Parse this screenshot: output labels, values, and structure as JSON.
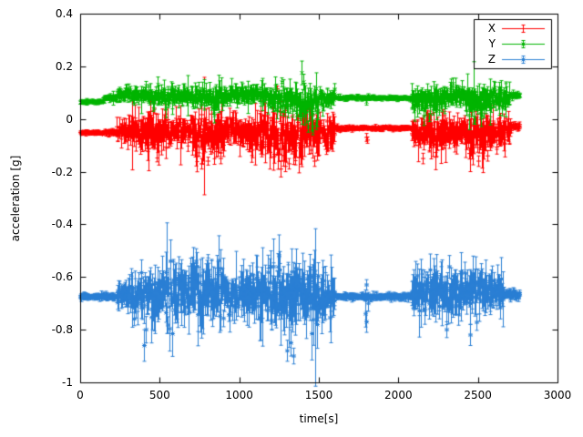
{
  "figure": {
    "background": "#ffffff",
    "border_color": "#000000",
    "text_color": "#000000"
  },
  "chart_data": {
    "type": "scatter",
    "style": "points-with-errorbars",
    "title": "",
    "xlabel": "time[s]",
    "ylabel": "acceleration [g]",
    "xlim": [
      0,
      3000
    ],
    "ylim": [
      -1,
      0.4
    ],
    "xticks": [
      0,
      500,
      1000,
      1500,
      2000,
      2500,
      3000
    ],
    "xtick_labels": [
      "0",
      "500",
      "1000",
      "1500",
      "2000",
      "2500",
      "3000"
    ],
    "yticks": [
      -1,
      -0.8,
      -0.6,
      -0.4,
      -0.2,
      0,
      0.2,
      0.4
    ],
    "ytick_labels": [
      "-1",
      "-0.8",
      "-0.6",
      "-0.4",
      "-0.2",
      "0",
      "0.2",
      "0.4"
    ],
    "grid": false,
    "legend_position": "top-right",
    "sample_step_s": 3,
    "t_end": 2762,
    "series": [
      {
        "name": "X",
        "color": "#ff0000",
        "marker": "plus",
        "seed": 11,
        "baseline_mean": -0.05,
        "segments": [
          [
            0,
            150,
            -0.052,
            0.004
          ],
          [
            150,
            230,
            -0.05,
            0.006
          ],
          [
            230,
            300,
            -0.05,
            0.025
          ],
          [
            300,
            420,
            -0.048,
            0.035
          ],
          [
            420,
            560,
            -0.05,
            0.045
          ],
          [
            560,
            700,
            -0.045,
            0.03
          ],
          [
            700,
            900,
            -0.06,
            0.05
          ],
          [
            900,
            1050,
            -0.045,
            0.035
          ],
          [
            1050,
            1180,
            -0.055,
            0.045
          ],
          [
            1180,
            1350,
            -0.07,
            0.055
          ],
          [
            1350,
            1500,
            -0.06,
            0.05
          ],
          [
            1500,
            1600,
            -0.05,
            0.035
          ],
          [
            1600,
            2080,
            -0.035,
            0.004
          ],
          [
            2080,
            2180,
            -0.05,
            0.04
          ],
          [
            2180,
            2300,
            -0.06,
            0.05
          ],
          [
            2300,
            2420,
            -0.045,
            0.035
          ],
          [
            2420,
            2560,
            -0.06,
            0.05
          ],
          [
            2560,
            2700,
            -0.05,
            0.04
          ],
          [
            2700,
            2762,
            -0.03,
            0.008
          ]
        ],
        "spikes": [
          [
            1235,
            0.115,
            0.01
          ],
          [
            760,
            -0.17,
            0.02
          ],
          [
            800,
            -0.16,
            0.015
          ],
          [
            880,
            -0.15,
            0.02
          ],
          [
            1260,
            -0.19,
            0.03
          ],
          [
            1290,
            -0.18,
            0.02
          ],
          [
            1310,
            -0.17,
            0.02
          ],
          [
            1470,
            -0.16,
            0.02
          ],
          [
            1795,
            -0.07,
            0.015
          ],
          [
            1805,
            -0.08,
            0.012
          ],
          [
            2150,
            -0.15,
            0.02
          ],
          [
            2500,
            -0.16,
            0.02
          ],
          [
            2560,
            -0.14,
            0.02
          ]
        ]
      },
      {
        "name": "Y",
        "color": "#00b400",
        "marker": "cross",
        "seed": 22,
        "baseline_mean": 0.08,
        "segments": [
          [
            0,
            150,
            0.065,
            0.004
          ],
          [
            150,
            230,
            0.08,
            0.006
          ],
          [
            230,
            420,
            0.09,
            0.015
          ],
          [
            420,
            700,
            0.085,
            0.02
          ],
          [
            700,
            900,
            0.08,
            0.025
          ],
          [
            900,
            1180,
            0.09,
            0.02
          ],
          [
            1180,
            1350,
            0.075,
            0.03
          ],
          [
            1350,
            1500,
            0.06,
            0.035
          ],
          [
            1500,
            1600,
            0.08,
            0.02
          ],
          [
            1600,
            2080,
            0.08,
            0.004
          ],
          [
            2080,
            2300,
            0.075,
            0.03
          ],
          [
            2300,
            2420,
            0.09,
            0.025
          ],
          [
            2420,
            2560,
            0.07,
            0.035
          ],
          [
            2560,
            2700,
            0.08,
            0.03
          ],
          [
            2700,
            2762,
            0.09,
            0.006
          ]
        ],
        "spikes": [
          [
            1390,
            0.175,
            0.045
          ],
          [
            1400,
            0.14,
            0.03
          ],
          [
            1430,
            -0.03,
            0.02
          ],
          [
            1460,
            -0.045,
            0.015
          ],
          [
            1480,
            -0.02,
            0.02
          ],
          [
            1800,
            0.065,
            0.012
          ],
          [
            2190,
            0.005,
            0.015
          ],
          [
            2480,
            -0.005,
            0.015
          ],
          [
            2520,
            0.01,
            0.01
          ]
        ]
      },
      {
        "name": "Z",
        "color": "#2a7fd4",
        "marker": "star",
        "seed": 33,
        "baseline_mean": -0.67,
        "segments": [
          [
            0,
            230,
            -0.675,
            0.006
          ],
          [
            230,
            300,
            -0.67,
            0.03
          ],
          [
            300,
            420,
            -0.665,
            0.05
          ],
          [
            420,
            560,
            -0.66,
            0.06
          ],
          [
            560,
            700,
            -0.655,
            0.065
          ],
          [
            700,
            900,
            -0.645,
            0.07
          ],
          [
            900,
            1050,
            -0.66,
            0.05
          ],
          [
            1050,
            1180,
            -0.665,
            0.06
          ],
          [
            1180,
            1350,
            -0.67,
            0.08
          ],
          [
            1350,
            1500,
            -0.665,
            0.075
          ],
          [
            1500,
            1600,
            -0.67,
            0.05
          ],
          [
            1600,
            2080,
            -0.675,
            0.006
          ],
          [
            2080,
            2180,
            -0.66,
            0.05
          ],
          [
            2180,
            2300,
            -0.655,
            0.06
          ],
          [
            2300,
            2420,
            -0.66,
            0.055
          ],
          [
            2420,
            2560,
            -0.655,
            0.06
          ],
          [
            2560,
            2660,
            -0.66,
            0.05
          ],
          [
            2660,
            2762,
            -0.67,
            0.012
          ]
        ],
        "spikes": [
          [
            400,
            -0.86,
            0.06
          ],
          [
            415,
            -0.8,
            0.05
          ],
          [
            1250,
            -0.52,
            0.08
          ],
          [
            1300,
            -0.88,
            0.04
          ],
          [
            1320,
            -0.85,
            0.05
          ],
          [
            1340,
            -0.9,
            0.03
          ],
          [
            1790,
            -0.74,
            0.05
          ],
          [
            1800,
            -0.77,
            0.04
          ],
          [
            1810,
            -0.7,
            0.03
          ],
          [
            1795,
            -0.63,
            0.02
          ],
          [
            2300,
            -0.8,
            0.03
          ],
          [
            2450,
            -0.82,
            0.04
          ]
        ]
      }
    ]
  }
}
